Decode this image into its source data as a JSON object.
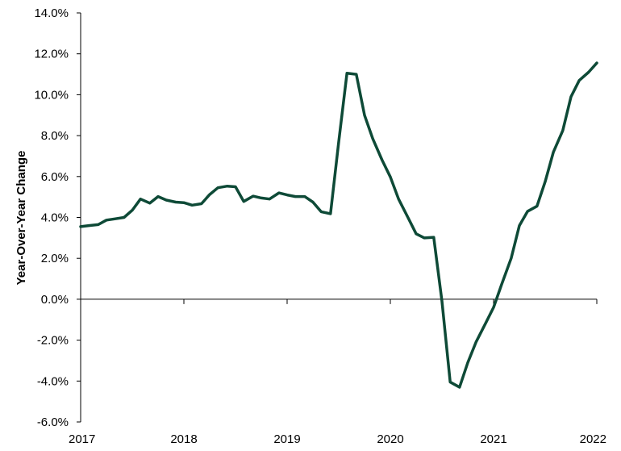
{
  "chart_data": {
    "type": "line",
    "title": "",
    "xlabel": "",
    "ylabel": "Year-Over-Year Change",
    "xlim": [
      2017,
      2022
    ],
    "ylim": [
      -6,
      14
    ],
    "y_ticks": [
      -6,
      -4,
      -2,
      0,
      2,
      4,
      6,
      8,
      10,
      12,
      14
    ],
    "y_tick_labels": [
      "-6.0%",
      "-4.0%",
      "-2.0%",
      "0.0%",
      "2.0%",
      "4.0%",
      "6.0%",
      "8.0%",
      "10.0%",
      "12.0%",
      "14.0%"
    ],
    "x_ticks": [
      2017,
      2018,
      2019,
      2020,
      2021,
      2022
    ],
    "x_tick_labels": [
      "2017",
      "2018",
      "2019",
      "2020",
      "2021",
      "2022"
    ],
    "grid": false,
    "legend": "none",
    "line_color": "#0e4a37",
    "series": [
      {
        "name": "",
        "x": [
          2017.0,
          2017.08,
          2017.17,
          2017.25,
          2017.33,
          2017.42,
          2017.5,
          2017.58,
          2017.67,
          2017.75,
          2017.83,
          2017.92,
          2018.0,
          2018.08,
          2018.17,
          2018.25,
          2018.33,
          2018.42,
          2018.5,
          2018.58,
          2018.67,
          2018.75,
          2018.83,
          2018.92,
          2019.0,
          2019.08,
          2019.17,
          2019.25,
          2019.33,
          2019.42,
          2019.5,
          2019.58,
          2019.67,
          2019.75,
          2019.83,
          2019.92,
          2020.0,
          2020.08,
          2020.17,
          2020.25,
          2020.33,
          2020.42,
          2020.5,
          2020.58,
          2020.67,
          2020.75,
          2020.83,
          2020.92,
          2021.0,
          2021.08,
          2021.17,
          2021.25,
          2021.33,
          2021.42,
          2021.5,
          2021.58,
          2021.67,
          2021.75,
          2021.83,
          2021.92,
          2022.0
        ],
        "y": [
          3.55,
          3.6,
          3.65,
          3.87,
          3.93,
          4.0,
          4.35,
          4.9,
          4.7,
          5.02,
          4.85,
          4.75,
          4.72,
          4.6,
          4.67,
          5.12,
          5.45,
          5.53,
          5.5,
          4.78,
          5.04,
          4.95,
          4.9,
          5.2,
          5.1,
          5.02,
          5.02,
          4.75,
          4.28,
          4.18,
          7.7,
          11.05,
          11.0,
          9.0,
          7.85,
          6.8,
          5.98,
          4.9,
          4.0,
          3.2,
          3.0,
          3.03,
          -0.1,
          -4.05,
          -4.3,
          -3.1,
          -2.1,
          -1.2,
          -0.4,
          0.75,
          2.0,
          3.6,
          4.3,
          4.55,
          5.75,
          7.2,
          8.25,
          9.9,
          10.7,
          11.1,
          11.55
        ]
      }
    ]
  }
}
